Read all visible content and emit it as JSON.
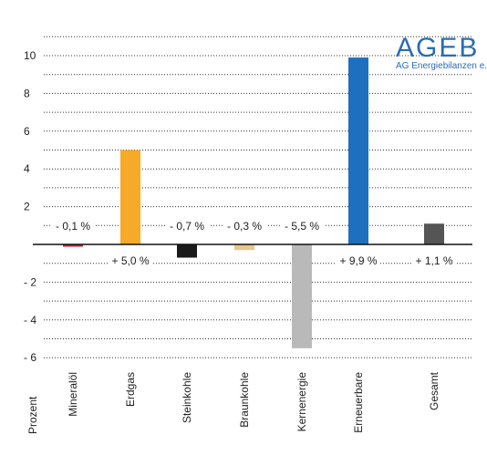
{
  "logo": {
    "name": "AGEB",
    "subtitle": "AG Energiebilanzen e.V."
  },
  "chart_data": {
    "type": "bar",
    "ylabel": "Prozent",
    "ylim": [
      -6.5,
      11.5
    ],
    "yticks": [
      10,
      8,
      6,
      4,
      2,
      -2,
      -4,
      -6
    ],
    "ytick_labels": [
      "10",
      "8",
      "6",
      "4",
      "2",
      "- 2",
      "- 4",
      "- 6"
    ],
    "grid": true,
    "categories": [
      "Mineralöl",
      "Erdgas",
      "Steinkohle",
      "Braunkohle",
      "Kernenergie",
      "Erneuerbare",
      "Gesamt"
    ],
    "values": [
      -0.1,
      5.0,
      -0.7,
      -0.3,
      -5.5,
      9.9,
      1.1
    ],
    "value_labels": [
      "- 0,1 %",
      "+ 5,0 %",
      "- 0,7 %",
      "- 0,3 %",
      "- 5,5 %",
      "+ 9,9 %",
      "+ 1,1 %"
    ],
    "colors": [
      "#c8232c",
      "#f7a928",
      "#1a1a1a",
      "#e8c88a",
      "#b9b9b9",
      "#1f6fbf",
      "#555555"
    ]
  }
}
